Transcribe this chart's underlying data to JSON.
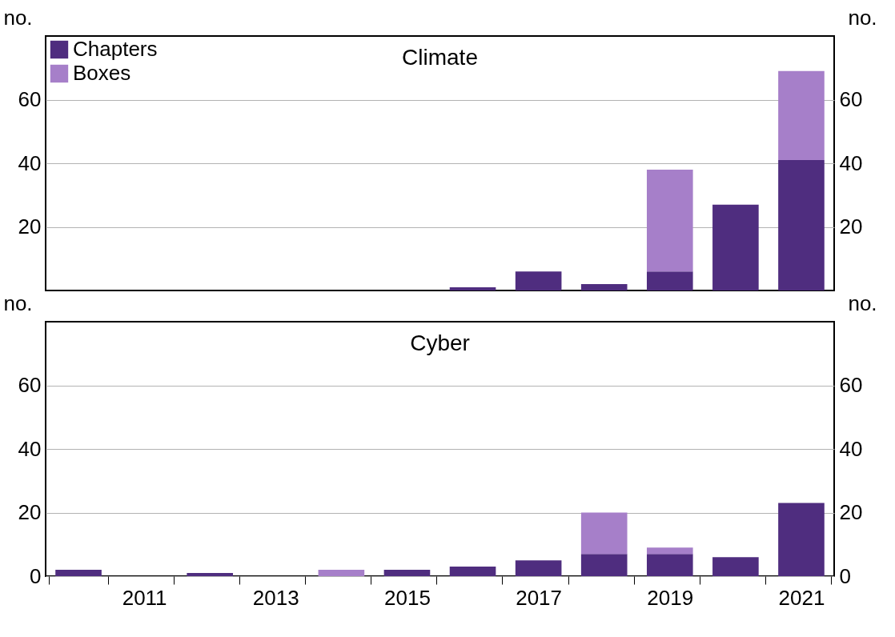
{
  "chart_data": [
    {
      "type": "bar",
      "title": "Climate",
      "stacked": true,
      "ylabel": "no.",
      "y2label": "no.",
      "legend": "top left",
      "grid": "y",
      "tick_labels": "y",
      "categories": [
        null,
        "2011",
        null,
        "2013",
        null,
        "2015",
        null,
        "2017",
        null,
        "2019",
        null,
        "2021"
      ],
      "ylim": [
        0,
        80
      ],
      "yticks": [
        20,
        40,
        60
      ],
      "y2lim": [
        0,
        80
      ],
      "y2ticks": [
        20,
        40,
        60
      ],
      "series": [
        {
          "name": "Chapters",
          "color": "#4f2d7f",
          "values": [
            0,
            0,
            0,
            0,
            0,
            0,
            1,
            6,
            2,
            6,
            27,
            41
          ]
        },
        {
          "name": "Boxes",
          "color": "#a67fc9",
          "values": [
            0,
            0,
            0,
            0,
            0,
            0,
            0,
            0,
            0,
            32,
            0,
            28
          ]
        }
      ]
    },
    {
      "type": "bar",
      "title": "Cyber",
      "stacked": true,
      "ylabel": "no.",
      "y2label": "no.",
      "legend": false,
      "grid": "y",
      "categories": [
        null,
        "2011",
        null,
        "2013",
        null,
        "2015",
        null,
        "2017",
        null,
        "2019",
        null,
        "2021"
      ],
      "ylim": [
        0,
        80
      ],
      "yticks": [
        0,
        20,
        40,
        60
      ],
      "y2lim": [
        0,
        80
      ],
      "y2ticks": [
        0,
        20,
        40,
        60
      ],
      "series": [
        {
          "color": "#4f2d7f",
          "values": [
            2,
            0,
            1,
            0,
            0,
            2,
            3,
            5,
            7,
            7,
            6,
            23
          ]
        },
        {
          "color": "#a67fc9",
          "values": [
            0,
            0,
            0,
            0,
            2,
            0,
            0,
            0,
            13,
            2,
            0,
            0
          ]
        }
      ]
    }
  ]
}
